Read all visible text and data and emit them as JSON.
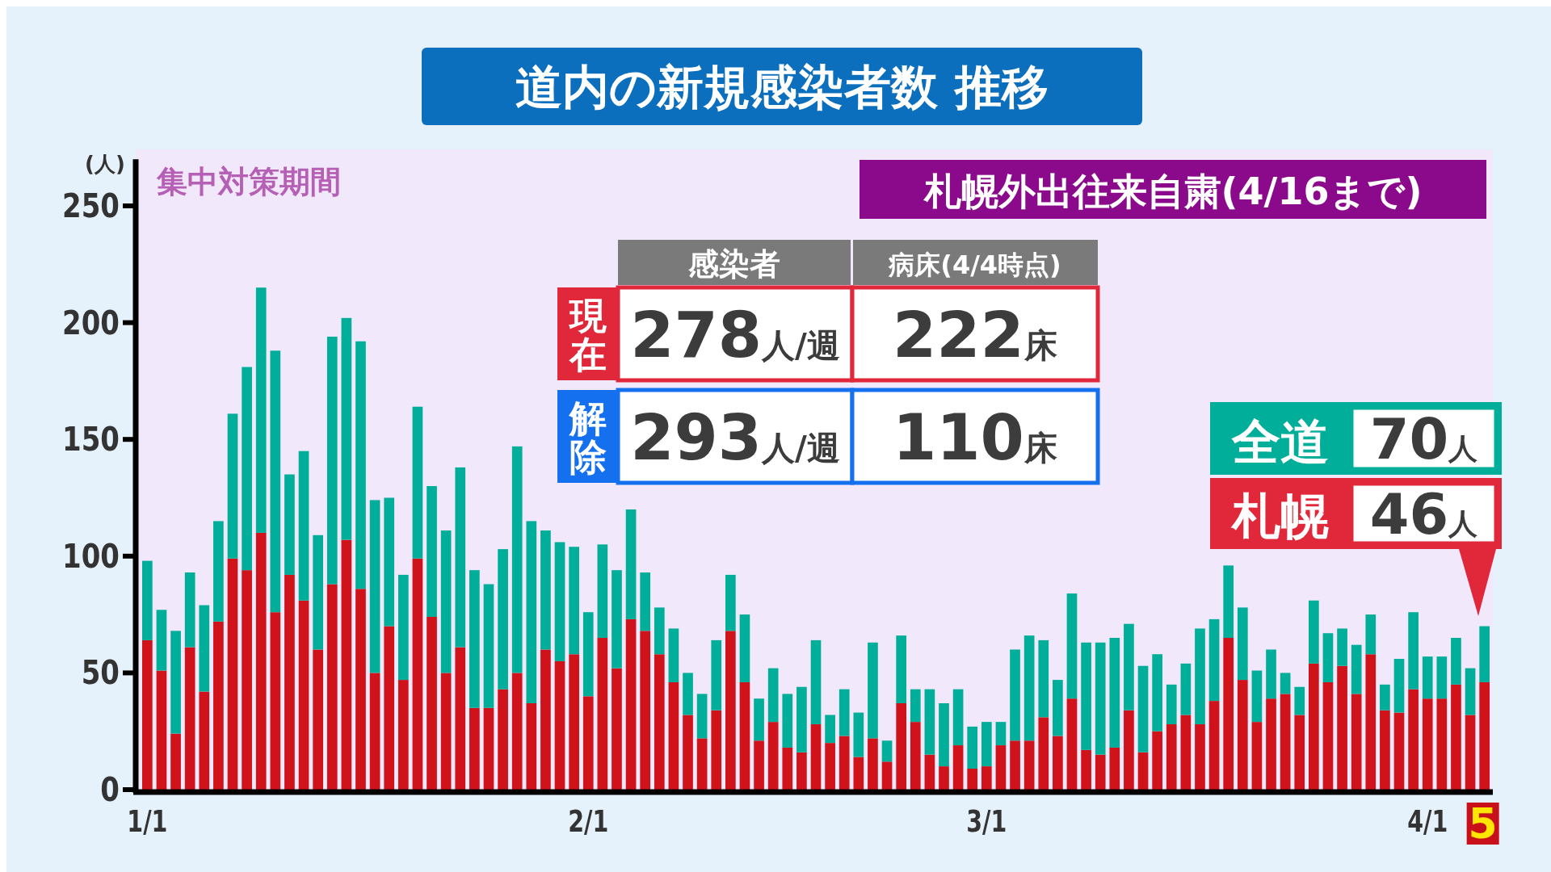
{
  "chart_data": {
    "type": "bar",
    "stacked": true,
    "title": "道内の新規感染者数 推移",
    "ylabel": "(人)",
    "ylim": [
      0,
      270
    ],
    "yticks": [
      0,
      50,
      100,
      150,
      200,
      250
    ],
    "grid": false,
    "categories": [
      "1/1",
      null,
      null,
      null,
      null,
      null,
      null,
      null,
      null,
      null,
      null,
      null,
      null,
      null,
      null,
      null,
      null,
      null,
      null,
      null,
      null,
      null,
      null,
      null,
      null,
      null,
      null,
      null,
      null,
      null,
      null,
      "2/1",
      null,
      null,
      null,
      null,
      null,
      null,
      null,
      null,
      null,
      null,
      null,
      null,
      null,
      null,
      null,
      null,
      null,
      null,
      null,
      null,
      null,
      null,
      null,
      null,
      null,
      null,
      null,
      "3/1",
      null,
      null,
      null,
      null,
      null,
      null,
      null,
      null,
      null,
      null,
      null,
      null,
      null,
      null,
      null,
      null,
      null,
      null,
      null,
      null,
      null,
      null,
      null,
      null,
      null,
      null,
      null,
      null,
      null,
      null,
      "4/1",
      null,
      null,
      null,
      "5"
    ],
    "series": [
      {
        "color": "#d0121b",
        "values": [
          64,
          51,
          24,
          61,
          42,
          72,
          99,
          94,
          110,
          76,
          92,
          81,
          60,
          88,
          107,
          86,
          50,
          70,
          47,
          99,
          74,
          50,
          61,
          35,
          35,
          43,
          50,
          37,
          60,
          55,
          58,
          40,
          65,
          52,
          73,
          68,
          58,
          46,
          32,
          22,
          34,
          68,
          46,
          21,
          29,
          18,
          16,
          28,
          20,
          23,
          14,
          22,
          12,
          37,
          29,
          15,
          10,
          19,
          9,
          10,
          19,
          21,
          21,
          31,
          23,
          39,
          17,
          15,
          18,
          34,
          16,
          25,
          28,
          32,
          28,
          38,
          65,
          47,
          29,
          39,
          41,
          32,
          54,
          46,
          53,
          41,
          58,
          34,
          33,
          43,
          39,
          39,
          45,
          32,
          46
        ]
      },
      {
        "color": "#00ae9a",
        "values": [
          34,
          26,
          44,
          32,
          37,
          43,
          62,
          87,
          105,
          112,
          43,
          64,
          49,
          106,
          95,
          106,
          74,
          55,
          45,
          65,
          56,
          61,
          77,
          59,
          53,
          60,
          97,
          78,
          51,
          51,
          46,
          36,
          40,
          42,
          47,
          25,
          20,
          23,
          18,
          19,
          30,
          24,
          29,
          18,
          23,
          23,
          28,
          36,
          12,
          20,
          19,
          41,
          9,
          29,
          14,
          28,
          27,
          24,
          18,
          19,
          10,
          39,
          45,
          33,
          24,
          45,
          46,
          48,
          47,
          37,
          37,
          33,
          17,
          22,
          41,
          35,
          31,
          31,
          22,
          21,
          9,
          12,
          27,
          21,
          16,
          21,
          17,
          11,
          23,
          33,
          18,
          18,
          20,
          20,
          24
        ]
      }
    ],
    "annotations": [
      "集中対策期間",
      "札幌外出往来自粛(4/16まで)",
      "感染者",
      "病床(4/4時点)",
      "現在",
      "278人/週",
      "222床",
      "解除",
      "293人/週",
      "110床",
      "全道",
      "70人",
      "札幌",
      "46人"
    ]
  }
}
